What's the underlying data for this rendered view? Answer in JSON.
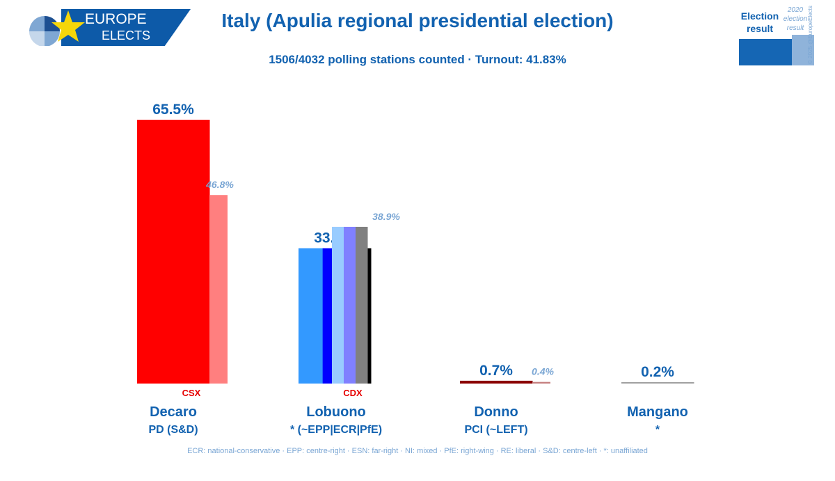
{
  "logo": {
    "line1": "EUROPE",
    "line2": "ELECTS"
  },
  "title": "Italy (Apulia regional presidential election)",
  "subtitle": "1506/4032 polling stations counted · Turnout: 41.83%",
  "legend": {
    "current_label": "Election result",
    "previous_label": "2020 election result",
    "credit": "© 2025 @EuropeElects"
  },
  "footer": "ECR: national-conservative · EPP: centre-right · ESN: far-right · NI: mixed · PfE: right-wing · RE: liberal · S&D: centre-left · *: unaffiliated",
  "colors": {
    "accent": "#1262b0",
    "light_accent": "#7aa6d4",
    "tag_red": "#e60000"
  },
  "chart_data": {
    "type": "bar",
    "ylim": [
      0,
      70
    ],
    "candidates": [
      {
        "name": "Decaro",
        "group": "PD (S&D)",
        "tag": "CSX",
        "value": 65.5,
        "value_label": "65.5%",
        "previous": 46.8,
        "previous_label": "46.8%",
        "colors": [
          "#ff0000"
        ],
        "previous_colors": [
          "#ff7f7f"
        ]
      },
      {
        "name": "Lobuono",
        "group": "* (~EPP|ECR|PfE)",
        "tag": "CDX",
        "value": 33.6,
        "value_label": "33.6%",
        "previous": 38.9,
        "previous_label": "38.9%",
        "colors": [
          "#3399ff",
          "#0000ff",
          "#000000"
        ],
        "previous_colors": [
          "#99ccff",
          "#8080ff",
          "#808080"
        ]
      },
      {
        "name": "Donno",
        "group": "PCI (~LEFT)",
        "tag": "",
        "value": 0.7,
        "value_label": "0.7%",
        "previous": 0.4,
        "previous_label": "0.4%",
        "colors": [
          "#8b0000"
        ],
        "previous_colors": [
          "#c57f7f"
        ]
      },
      {
        "name": "Mangano",
        "group": "*",
        "tag": "",
        "value": 0.2,
        "value_label": "0.2%",
        "previous": null,
        "previous_label": "",
        "colors": [
          "#a0a0a0"
        ],
        "previous_colors": []
      }
    ]
  }
}
